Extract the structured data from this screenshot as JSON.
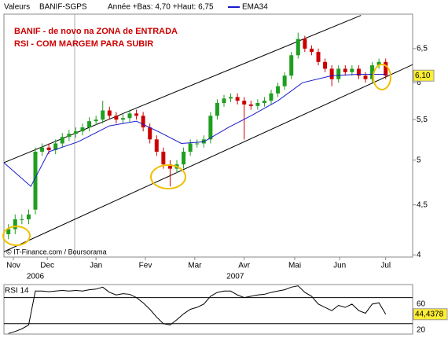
{
  "header": {
    "label": "Valeurs",
    "symbol": "BANIF-SGPS",
    "range_text": "Année +Bas: 4,70 +Haut: 6,75"
  },
  "chart_data": [
    {
      "type": "candlestick",
      "annotations": [
        "BANIF - de novo na ZONA de ENTRADA",
        "RSI - COM MARGEM PARA SUBIR"
      ],
      "source": "© IT-Finance.com / Boursorama",
      "log_scale": true,
      "x": [
        2,
        5,
        8,
        11,
        14,
        17,
        20,
        23,
        26,
        29,
        32,
        35,
        38,
        41,
        44,
        47,
        50,
        53,
        56,
        59,
        62,
        65,
        68,
        71,
        74,
        77,
        80,
        83,
        86,
        89,
        92,
        95,
        98,
        101,
        104,
        107,
        110,
        113,
        116,
        119,
        122,
        125,
        128,
        131,
        134,
        137,
        140,
        143,
        146,
        149,
        152,
        155,
        158,
        161,
        164,
        167,
        170
      ],
      "open": [
        4.2,
        4.25,
        4.35,
        4.35,
        4.45,
        5.1,
        5.15,
        5.12,
        5.2,
        5.28,
        5.32,
        5.35,
        5.4,
        5.48,
        5.5,
        5.62,
        5.55,
        5.5,
        5.52,
        5.58,
        5.55,
        5.4,
        5.25,
        5.1,
        4.95,
        4.9,
        4.95,
        5.1,
        5.2,
        5.2,
        5.25,
        5.55,
        5.72,
        5.78,
        5.8,
        5.75,
        5.7,
        5.68,
        5.72,
        5.75,
        5.85,
        5.95,
        6.1,
        6.4,
        6.65,
        6.5,
        6.45,
        6.3,
        6.2,
        6.05,
        6.2,
        6.15,
        6.2,
        6.1,
        6.05,
        6.25,
        6.3
      ],
      "high": [
        4.3,
        4.4,
        4.4,
        4.45,
        5.15,
        5.2,
        5.2,
        5.25,
        5.33,
        5.37,
        5.4,
        5.45,
        5.53,
        5.55,
        5.75,
        5.67,
        5.6,
        5.57,
        5.63,
        5.63,
        5.6,
        5.45,
        5.3,
        5.15,
        5.0,
        5.0,
        5.15,
        5.25,
        5.25,
        5.3,
        5.6,
        5.77,
        5.83,
        5.85,
        5.85,
        5.8,
        5.75,
        5.77,
        5.8,
        5.9,
        6.0,
        6.15,
        6.45,
        6.75,
        6.7,
        6.55,
        6.5,
        6.35,
        6.25,
        6.25,
        6.25,
        6.25,
        6.25,
        6.15,
        6.3,
        6.35,
        6.35
      ],
      "low": [
        4.15,
        4.2,
        4.3,
        4.3,
        4.4,
        5.05,
        5.07,
        5.07,
        5.15,
        5.23,
        5.27,
        5.3,
        5.35,
        5.43,
        5.45,
        5.5,
        5.45,
        5.45,
        5.47,
        5.5,
        5.35,
        5.2,
        5.05,
        4.9,
        4.7,
        4.85,
        4.9,
        5.05,
        5.15,
        5.15,
        5.2,
        5.5,
        5.67,
        5.73,
        5.7,
        5.25,
        5.63,
        5.63,
        5.67,
        5.7,
        5.8,
        5.9,
        6.05,
        6.35,
        6.45,
        6.4,
        6.25,
        6.15,
        5.95,
        6.0,
        6.1,
        6.1,
        6.05,
        6.0,
        6.0,
        6.2,
        6.05
      ],
      "close": [
        4.25,
        4.35,
        4.35,
        4.4,
        5.1,
        5.15,
        5.12,
        5.2,
        5.28,
        5.32,
        5.35,
        5.4,
        5.48,
        5.5,
        5.62,
        5.55,
        5.5,
        5.52,
        5.58,
        5.55,
        5.4,
        5.25,
        5.1,
        4.95,
        4.9,
        4.95,
        5.1,
        5.2,
        5.2,
        5.25,
        5.55,
        5.72,
        5.78,
        5.8,
        5.75,
        5.7,
        5.68,
        5.72,
        5.75,
        5.85,
        5.95,
        6.1,
        6.4,
        6.65,
        6.5,
        6.45,
        6.3,
        6.2,
        6.05,
        6.2,
        6.15,
        6.2,
        6.1,
        6.05,
        6.25,
        6.3,
        6.1
      ],
      "up_color": "#1f9e1f",
      "down_color": "#cc0000",
      "series": [
        {
          "name": "EMA34",
          "color": "#1a1acc",
          "x": [
            0,
            12,
            20,
            33,
            47,
            59,
            70,
            79,
            89,
            100,
            110,
            122,
            133,
            146,
            158,
            170
          ],
          "values": [
            4.97,
            4.7,
            5.1,
            5.22,
            5.42,
            5.48,
            5.33,
            5.2,
            5.22,
            5.4,
            5.55,
            5.75,
            6.0,
            6.1,
            6.12,
            6.12
          ]
        }
      ],
      "channels": [
        {
          "x": [
            0,
            159
          ],
          "values": [
            4.97,
            7.03
          ]
        },
        {
          "x": [
            0,
            182
          ],
          "values": [
            4.03,
            6.26
          ]
        }
      ],
      "last_price": {
        "value": 6.1,
        "label": "6,10"
      },
      "xlim": [
        0,
        182
      ],
      "xticks": [
        {
          "value": 4.2,
          "label": "Nov"
        },
        {
          "value": 19.3,
          "label": "Dec"
        },
        {
          "value": 41,
          "label": "Jan"
        },
        {
          "value": 63,
          "label": "Fev"
        },
        {
          "value": 85,
          "label": "Mar"
        },
        {
          "value": 107,
          "label": "Avr"
        },
        {
          "value": 129.5,
          "label": "Mai"
        },
        {
          "value": 149.5,
          "label": "Jun"
        },
        {
          "value": 170,
          "label": "Jul"
        }
      ],
      "year_labels": [
        {
          "value": 14,
          "label": "2006"
        },
        {
          "value": 103,
          "label": "2007"
        }
      ],
      "ylim": [
        3.98,
        7.05
      ],
      "yticks": [
        {
          "value": 4,
          "label": "4"
        },
        {
          "value": 4.5,
          "label": "4,5"
        },
        {
          "value": 5,
          "label": "5"
        },
        {
          "value": 5.5,
          "label": "5,5"
        },
        {
          "value": 6,
          "label": "6"
        },
        {
          "value": 6.5,
          "label": "6,5"
        }
      ]
    },
    {
      "type": "line",
      "title": "RSI 14",
      "series": [
        {
          "color": "#000000",
          "values": [
            15,
            18,
            22,
            28,
            80,
            80,
            79,
            80,
            81,
            80,
            81,
            80,
            82,
            83,
            86,
            78,
            74,
            76,
            75,
            70,
            62,
            52,
            40,
            30,
            28,
            36,
            45,
            52,
            55,
            60,
            72,
            78,
            80,
            80,
            74,
            70,
            72,
            74,
            75,
            78,
            80,
            82,
            86,
            88,
            78,
            72,
            60,
            55,
            50,
            58,
            55,
            60,
            50,
            46,
            60,
            62,
            44.4378
          ],
          "value_labels": {
            "56": "44,4378"
          }
        }
      ],
      "levels": [
        70,
        30
      ],
      "ylim": [
        14,
        90
      ],
      "yticks": [
        20,
        60
      ]
    }
  ]
}
